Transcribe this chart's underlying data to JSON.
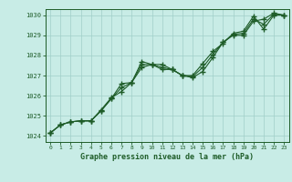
{
  "title": "Graphe pression niveau de la mer (hPa)",
  "bg_color": "#c8ece6",
  "line_color": "#1e5c28",
  "grid_color": "#a0cfc8",
  "xlim": [
    -0.5,
    23.5
  ],
  "ylim": [
    1023.7,
    1030.3
  ],
  "yticks": [
    1024,
    1025,
    1026,
    1027,
    1028,
    1029,
    1030
  ],
  "ytick_top": 1030,
  "xticks": [
    0,
    1,
    2,
    3,
    4,
    5,
    6,
    7,
    8,
    9,
    10,
    11,
    12,
    13,
    14,
    15,
    16,
    17,
    18,
    19,
    20,
    21,
    22,
    23
  ],
  "series1_x": [
    0,
    1,
    2,
    3,
    4,
    5,
    6,
    7,
    8,
    9,
    10,
    11,
    12,
    13,
    14,
    15,
    16,
    17,
    18,
    19,
    20,
    21,
    22,
    23
  ],
  "series1_y": [
    1024.15,
    1024.55,
    1024.7,
    1024.75,
    1024.75,
    1025.25,
    1025.85,
    1026.6,
    1026.65,
    1027.7,
    1027.55,
    1027.3,
    1027.3,
    1027.0,
    1026.9,
    1027.2,
    1027.9,
    1028.65,
    1029.0,
    1029.0,
    1029.7,
    1029.8,
    1030.1,
    1030.0
  ],
  "series2_x": [
    0,
    1,
    2,
    3,
    4,
    5,
    6,
    7,
    8,
    9,
    10,
    11,
    12,
    13,
    14,
    15,
    16,
    17,
    18,
    19,
    20,
    21,
    22,
    23
  ],
  "series2_y": [
    1024.15,
    1024.55,
    1024.7,
    1024.75,
    1024.75,
    1025.3,
    1025.9,
    1026.2,
    1026.65,
    1027.4,
    1027.55,
    1027.55,
    1027.3,
    1027.0,
    1027.0,
    1027.6,
    1028.2,
    1028.6,
    1029.1,
    1029.2,
    1029.95,
    1029.3,
    1030.0,
    1030.0
  ],
  "series3_x": [
    0,
    1,
    2,
    3,
    4,
    5,
    6,
    7,
    8,
    9,
    10,
    11,
    12,
    13,
    14,
    15,
    16,
    17,
    18,
    19,
    20,
    21,
    22,
    23
  ],
  "series3_y": [
    1024.15,
    1024.55,
    1024.7,
    1024.75,
    1024.75,
    1025.25,
    1025.85,
    1026.4,
    1026.65,
    1027.55,
    1027.55,
    1027.4,
    1027.3,
    1027.0,
    1026.95,
    1027.4,
    1028.05,
    1028.65,
    1029.05,
    1029.1,
    1029.8,
    1029.55,
    1030.05,
    1030.0
  ]
}
